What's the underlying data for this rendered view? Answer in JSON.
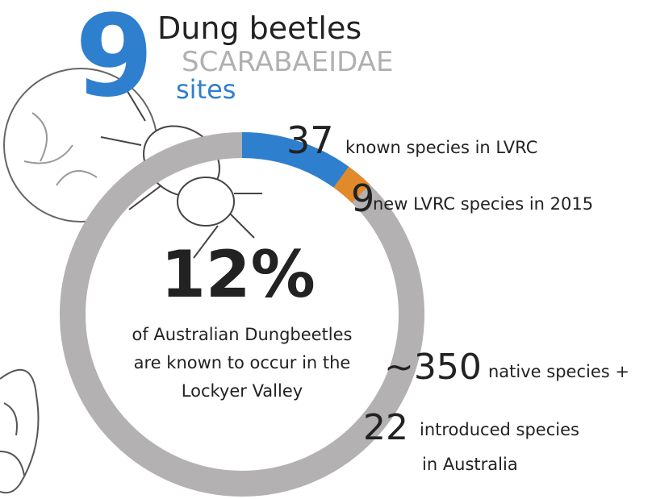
{
  "headline": {
    "number": 9,
    "title": "Dung beetles",
    "subtitle": "SCARABAEIDAE",
    "unit": "sites"
  },
  "chart_data": {
    "type": "donut",
    "series": [
      {
        "name": "known species in LVRC",
        "value": 37,
        "color": "#2f7fcf"
      },
      {
        "name": "new LVRC species in 2015",
        "value": 9,
        "color": "#e08a2c"
      }
    ],
    "ring_color": "#b3b1b2",
    "totals": [
      {
        "value": 350,
        "label": "~350",
        "name": "native species +"
      },
      {
        "value": 22,
        "name": "introduced species",
        "note": "in Australia"
      }
    ],
    "center": {
      "value": 12,
      "label": "12%",
      "lines": [
        "of Australian Dungbeetles",
        "are known to occur in the",
        "Lockyer Valley"
      ]
    }
  }
}
